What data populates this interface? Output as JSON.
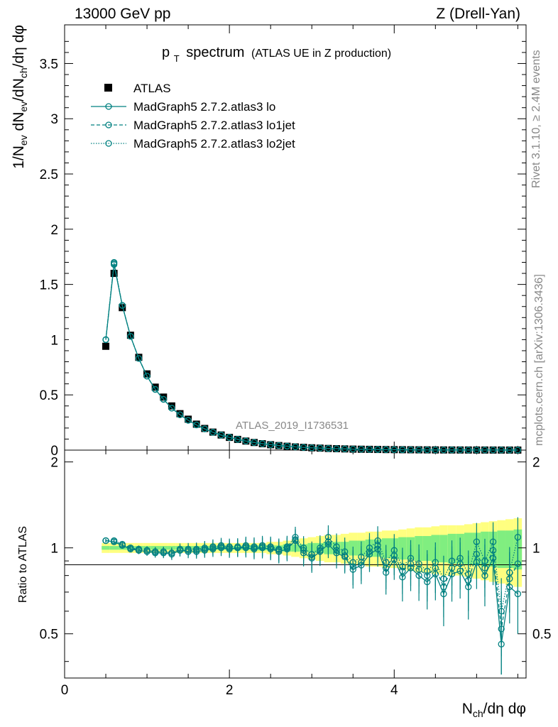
{
  "header": {
    "left": "13000 GeV pp",
    "right": "Z (Drell-Yan)"
  },
  "side_texts": {
    "rivet": "Rivet 3.1.10, ≥ 2.4M events",
    "mcplots": "mcplots.cern.ch [arXiv:1306.3436]"
  },
  "chart_data": {
    "type": "line",
    "title_main": "p",
    "title_sub": "T",
    "title_rest": "spectrum",
    "title_small": "(ATLAS UE in Z production)",
    "analysis_label": "ATLAS_2019_I1736531",
    "main": {
      "ylabel": "1/N_ev dN_ev/dN_ch/dη dφ",
      "ylim": [
        0,
        3.85
      ],
      "yticks": [
        "0",
        "0.5",
        "1",
        "1.5",
        "2",
        "2.5",
        "3",
        "3.5"
      ],
      "ytick_values": [
        0,
        0.5,
        1,
        1.5,
        2,
        2.5,
        3,
        3.5
      ],
      "x": [
        0.5,
        0.6,
        0.7,
        0.8,
        0.9,
        1.0,
        1.1,
        1.2,
        1.3,
        1.4,
        1.5,
        1.6,
        1.7,
        1.8,
        1.9,
        2.0,
        2.1,
        2.2,
        2.3,
        2.4,
        2.5,
        2.6,
        2.7,
        2.8,
        2.9,
        3.0,
        3.1,
        3.2,
        3.3,
        3.4,
        3.5,
        3.6,
        3.7,
        3.8,
        3.9,
        4.0,
        4.1,
        4.2,
        4.3,
        4.4,
        4.5,
        4.6,
        4.7,
        4.8,
        4.9,
        5.0,
        5.1,
        5.2,
        5.3,
        5.4,
        5.5
      ],
      "series": [
        {
          "name": "ATLAS",
          "style": "data",
          "values": [
            0.94,
            1.6,
            1.29,
            1.04,
            0.84,
            0.69,
            0.57,
            0.48,
            0.4,
            0.33,
            0.28,
            0.235,
            0.196,
            0.163,
            0.137,
            0.115,
            0.097,
            0.082,
            0.069,
            0.058,
            0.049,
            0.041,
            0.035,
            0.029,
            0.025,
            0.021,
            0.018,
            0.015,
            0.013,
            0.011,
            0.009,
            0.008,
            0.007,
            0.006,
            0.005,
            0.0044,
            0.0037,
            0.0032,
            0.0027,
            0.0023,
            0.0019,
            0.0016,
            0.0014,
            0.0012,
            0.001,
            0.0009,
            0.0008,
            0.0007,
            0.0006,
            0.0005,
            0.0004
          ]
        },
        {
          "name": "MadGraph5 2.7.2.atlas3 lo",
          "style": "solid",
          "values": [
            1.0,
            1.68,
            1.31,
            1.03,
            0.83,
            0.67,
            0.55,
            0.46,
            0.38,
            0.32,
            0.27,
            0.228,
            0.192,
            0.161,
            0.136,
            0.115,
            0.097,
            0.082,
            0.069,
            0.058,
            0.049,
            0.041,
            0.035,
            0.029,
            0.025,
            0.021,
            0.018,
            0.015,
            0.013,
            0.011,
            0.009,
            0.008,
            0.007,
            0.006,
            0.005,
            0.0044,
            0.0037,
            0.0032,
            0.0027,
            0.0023,
            0.0019,
            0.0016,
            0.0014,
            0.0012,
            0.001,
            0.0009,
            0.0008,
            0.0007,
            0.0006,
            0.0005,
            0.0004
          ]
        },
        {
          "name": "MadGraph5 2.7.2.atlas3 lo1jet",
          "style": "dashed",
          "values": [
            1.0,
            1.69,
            1.31,
            1.03,
            0.83,
            0.67,
            0.55,
            0.46,
            0.38,
            0.32,
            0.27,
            0.228,
            0.193,
            0.162,
            0.137,
            0.116,
            0.098,
            0.083,
            0.07,
            0.059,
            0.05,
            0.042,
            0.036,
            0.03,
            0.025,
            0.021,
            0.018,
            0.015,
            0.013,
            0.011,
            0.009,
            0.008,
            0.007,
            0.006,
            0.005,
            0.0044,
            0.0037,
            0.0032,
            0.0027,
            0.0023,
            0.0019,
            0.0016,
            0.0014,
            0.0012,
            0.001,
            0.0009,
            0.0008,
            0.0007,
            0.0006,
            0.0005,
            0.0004
          ]
        },
        {
          "name": "MadGraph5 2.7.2.atlas3 lo2jet",
          "style": "dotted",
          "values": [
            1.0,
            1.7,
            1.31,
            1.03,
            0.83,
            0.67,
            0.55,
            0.46,
            0.38,
            0.32,
            0.27,
            0.229,
            0.193,
            0.162,
            0.137,
            0.116,
            0.098,
            0.083,
            0.07,
            0.059,
            0.05,
            0.042,
            0.036,
            0.03,
            0.025,
            0.021,
            0.018,
            0.015,
            0.013,
            0.011,
            0.009,
            0.008,
            0.007,
            0.006,
            0.005,
            0.0044,
            0.0037,
            0.0032,
            0.0027,
            0.0023,
            0.0019,
            0.0016,
            0.0014,
            0.0012,
            0.001,
            0.0009,
            0.0008,
            0.0007,
            0.0006,
            0.0005,
            0.0004
          ]
        }
      ]
    },
    "ratio": {
      "ylabel": "Ratio to ATLAS",
      "ylim": [
        0.35,
        2.2
      ],
      "yticks": [
        "0.5",
        "1",
        "2"
      ],
      "ytick_values": [
        0.5,
        1,
        2
      ],
      "x": [
        0.5,
        0.6,
        0.7,
        0.8,
        0.9,
        1.0,
        1.1,
        1.2,
        1.3,
        1.4,
        1.5,
        1.6,
        1.7,
        1.8,
        1.9,
        2.0,
        2.1,
        2.2,
        2.3,
        2.4,
        2.5,
        2.6,
        2.7,
        2.8,
        2.9,
        3.0,
        3.1,
        3.2,
        3.3,
        3.4,
        3.5,
        3.6,
        3.7,
        3.8,
        3.9,
        4.0,
        4.1,
        4.2,
        4.3,
        4.4,
        4.5,
        4.6,
        4.7,
        4.8,
        4.9,
        5.0,
        5.1,
        5.2,
        5.3,
        5.4,
        5.5
      ],
      "band_inner": [
        0.015,
        0.015,
        0.015,
        0.015,
        0.015,
        0.015,
        0.015,
        0.015,
        0.015,
        0.015,
        0.015,
        0.015,
        0.015,
        0.015,
        0.015,
        0.015,
        0.015,
        0.015,
        0.02,
        0.02,
        0.02,
        0.02,
        0.03,
        0.03,
        0.03,
        0.04,
        0.04,
        0.05,
        0.05,
        0.05,
        0.06,
        0.06,
        0.07,
        0.07,
        0.08,
        0.08,
        0.09,
        0.09,
        0.1,
        0.1,
        0.11,
        0.11,
        0.12,
        0.12,
        0.13,
        0.13,
        0.14,
        0.14,
        0.15,
        0.15,
        0.16
      ],
      "band_outer": [
        0.04,
        0.04,
        0.04,
        0.04,
        0.04,
        0.04,
        0.04,
        0.04,
        0.04,
        0.04,
        0.04,
        0.04,
        0.04,
        0.04,
        0.04,
        0.04,
        0.04,
        0.04,
        0.04,
        0.04,
        0.05,
        0.05,
        0.06,
        0.07,
        0.08,
        0.09,
        0.1,
        0.11,
        0.11,
        0.12,
        0.13,
        0.13,
        0.14,
        0.14,
        0.15,
        0.15,
        0.16,
        0.17,
        0.18,
        0.18,
        0.19,
        0.2,
        0.2,
        0.2,
        0.21,
        0.22,
        0.23,
        0.24,
        0.25,
        0.26,
        0.27
      ],
      "series": [
        {
          "name": "MadGraph5 2.7.2.atlas3 lo",
          "style": "solid",
          "values": [
            1.06,
            1.05,
            1.02,
            0.99,
            0.98,
            0.97,
            0.96,
            0.96,
            0.95,
            0.98,
            0.97,
            0.97,
            0.98,
            0.99,
            1.0,
            0.99,
            1.0,
            1.0,
            0.99,
            1.0,
            0.99,
            0.97,
            0.99,
            1.06,
            0.96,
            0.92,
            0.97,
            1.03,
            0.96,
            0.93,
            0.84,
            0.87,
            0.95,
            0.99,
            0.82,
            0.91,
            0.79,
            0.85,
            0.8,
            0.76,
            0.81,
            0.69,
            0.81,
            0.83,
            0.73,
            0.89,
            0.8,
            0.92,
            0.46,
            0.73,
            0.69
          ]
        },
        {
          "name": "MadGraph5 2.7.2.atlas3 lo1jet",
          "style": "dashed",
          "values": [
            1.06,
            1.05,
            1.02,
            1.0,
            0.98,
            0.98,
            0.97,
            0.97,
            0.96,
            0.98,
            0.98,
            0.98,
            0.99,
            1.0,
            1.01,
            1.0,
            1.0,
            1.01,
            1.0,
            1.01,
            1.0,
            0.98,
            1.0,
            1.07,
            0.98,
            0.93,
            0.98,
            1.05,
            0.98,
            0.94,
            0.86,
            0.89,
            0.97,
            1.02,
            0.85,
            0.94,
            0.83,
            0.88,
            0.84,
            0.8,
            0.85,
            0.73,
            0.85,
            0.88,
            0.77,
            0.95,
            0.85,
            0.98,
            0.52,
            0.78,
            0.88
          ]
        },
        {
          "name": "MadGraph5 2.7.2.atlas3 lo2jet",
          "style": "dotted",
          "values": [
            1.06,
            1.06,
            1.03,
            1.0,
            0.99,
            0.98,
            0.97,
            0.97,
            0.96,
            0.99,
            0.99,
            0.99,
            1.0,
            1.01,
            1.02,
            1.01,
            1.01,
            1.02,
            1.01,
            1.02,
            1.01,
            0.99,
            1.01,
            1.09,
            1.0,
            0.95,
            1.0,
            1.09,
            1.01,
            0.97,
            0.89,
            0.93,
            1.0,
            1.06,
            0.89,
            0.98,
            0.86,
            0.92,
            0.88,
            0.83,
            0.89,
            0.78,
            0.9,
            0.92,
            0.81,
            1.05,
            0.9,
            1.05,
            0.6,
            0.82,
            1.09
          ]
        }
      ]
    },
    "xaxis": {
      "xlim": [
        0,
        5.6
      ],
      "xticks": [
        "0",
        "2",
        "4"
      ],
      "xtick_values": [
        0,
        2,
        4
      ],
      "xlabel_main": "N",
      "xlabel_sub": "ch",
      "xlabel_rest": "/dη dφ"
    },
    "colors": {
      "mc": "#008080",
      "band_inner": "#80ee80",
      "band_outer": "#ffff80",
      "data": "#000000"
    }
  }
}
